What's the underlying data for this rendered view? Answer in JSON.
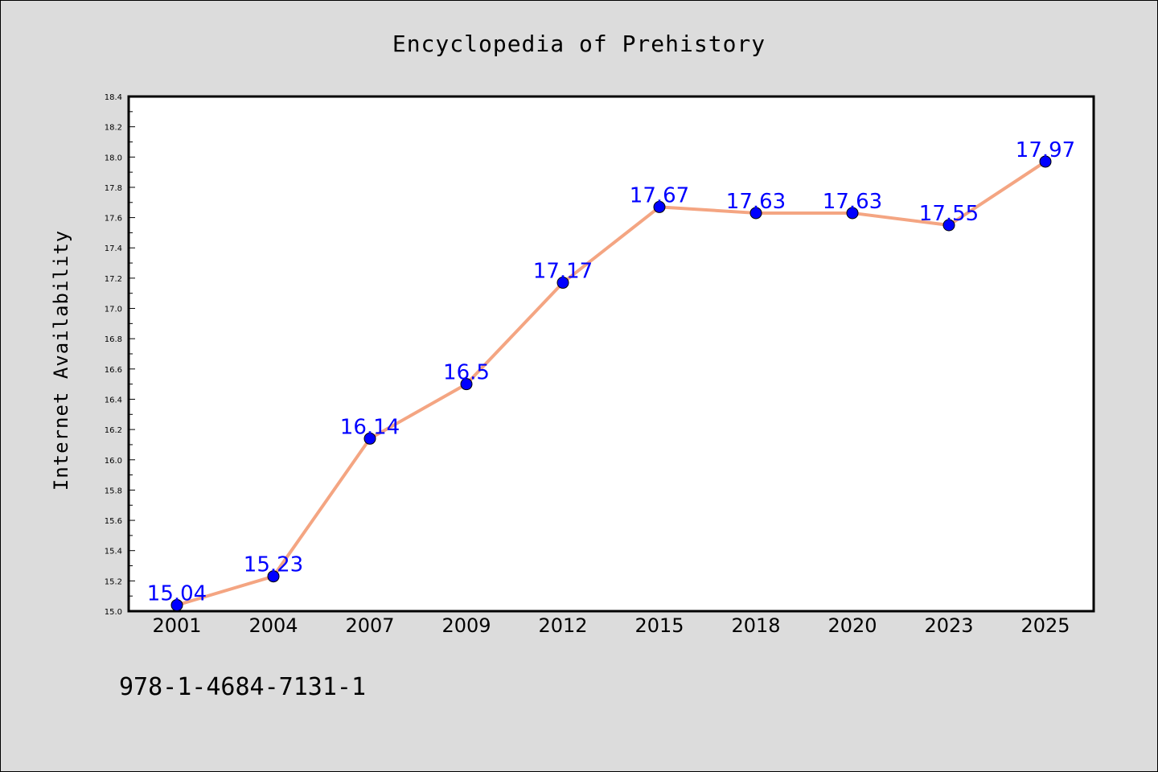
{
  "chart_data": {
    "type": "line",
    "title": "Encyclopedia of Prehistory",
    "xlabel": "",
    "ylabel": "Internet Availability",
    "categories": [
      "2001",
      "2004",
      "2007",
      "2009",
      "2012",
      "2015",
      "2018",
      "2020",
      "2023",
      "2025"
    ],
    "series": [
      {
        "values": [
          15.04,
          15.23,
          16.14,
          16.5,
          17.17,
          17.67,
          17.63,
          17.63,
          17.55,
          17.97
        ],
        "labels": [
          "15.04",
          "15.23",
          "16.14",
          "16.5",
          "17.17",
          "17.67",
          "17.63",
          "17.63",
          "17.55",
          "17.97"
        ]
      }
    ],
    "ylim": [
      15.0,
      18.4
    ],
    "yticks": [
      "15.0",
      "15.2",
      "15.4",
      "15.6",
      "15.8",
      "16.0",
      "16.2",
      "16.4",
      "16.6",
      "16.8",
      "17.0",
      "17.2",
      "17.4",
      "17.6",
      "17.8",
      "18.0",
      "18.2",
      "18.4"
    ],
    "grid": false,
    "legend": "none",
    "colors": {
      "line": "#f4a582",
      "marker": "#0000ff",
      "label": "#0000ff",
      "background": "#dcdcdc",
      "plot_background": "#ffffff"
    }
  },
  "footer": {
    "code": "978-1-4684-7131-1"
  }
}
